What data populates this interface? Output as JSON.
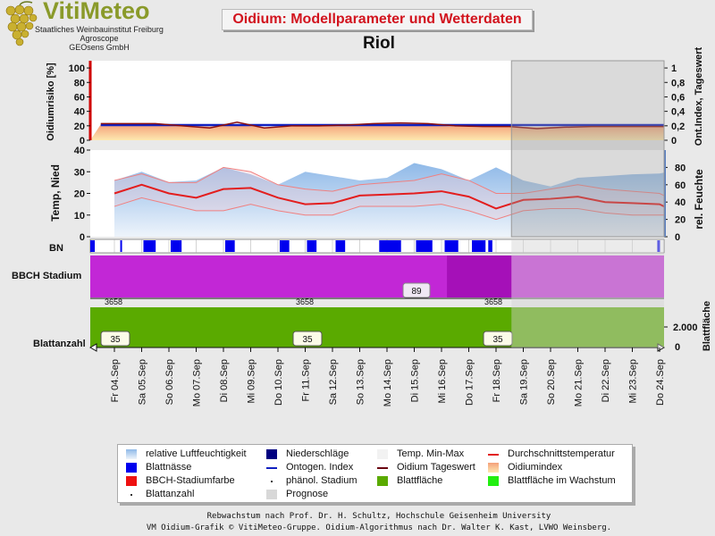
{
  "logo": {
    "title": "VitiMeteo",
    "lines": [
      "Staatliches Weinbauinstitut Freiburg",
      "Agroscope",
      "GEOsens GmbH"
    ],
    "icon": "grape-icon"
  },
  "header": {
    "title": "Oidium: Modellparameter und Wetterdaten",
    "station": "Riol"
  },
  "colors": {
    "temp_line": "#e31e1e",
    "humidity_fill": "#9ec4ea",
    "leaf_area": "#5aaa00",
    "bbch": "#c227d6",
    "wetness": "#0000ee",
    "prognosis": "#cfcfcf"
  },
  "chart_data": [
    {
      "name": "oidium",
      "type": "area",
      "ylabel": "Oidiumrisiko [%]",
      "y2label": "Ont.Index, Tageswert",
      "yticks": [
        0,
        20,
        40,
        60,
        80,
        100
      ],
      "y2ticks": [
        "0",
        "0,2",
        "0,4",
        "0,6",
        "0,8",
        "1"
      ],
      "ylim": [
        0,
        110
      ],
      "series": [
        {
          "name": "Oidiumindex",
          "values": [
            22,
            22,
            21,
            20,
            19,
            21,
            18,
            19,
            20,
            21,
            21,
            20,
            21,
            19,
            18,
            19,
            18,
            19,
            20,
            20,
            19,
            19
          ]
        },
        {
          "name": "Oidium Tageswert",
          "values": [
            23,
            23,
            23,
            20,
            17,
            25,
            17,
            20,
            20,
            21,
            23,
            24,
            23,
            20,
            19,
            19,
            16,
            18,
            19,
            19,
            19,
            19
          ]
        },
        {
          "name": "Ontogen. Index",
          "values": [
            21,
            21,
            21,
            21,
            21,
            21,
            21,
            21,
            21,
            21,
            21,
            21,
            21,
            21,
            21,
            21,
            21,
            21,
            21,
            21,
            21,
            21
          ]
        }
      ]
    },
    {
      "name": "weather",
      "type": "line",
      "ylabel": "Temp, Nied",
      "y2label": "rel. Feuchte",
      "yticks": [
        0,
        10,
        20,
        30,
        40
      ],
      "y2ticks": [
        0,
        20,
        40,
        60,
        80
      ],
      "ylim": [
        0,
        40
      ],
      "y2lim": [
        0,
        100
      ],
      "series": [
        {
          "name": "Durchschnittstemperatur",
          "values": [
            20,
            24,
            20,
            18,
            22,
            22.5,
            18,
            15,
            15.5,
            19,
            19.5,
            20,
            21,
            18.5,
            13,
            17,
            17.5,
            18.5,
            16,
            15.5,
            15,
            14
          ]
        },
        {
          "name": "Temp. Max",
          "values": [
            26,
            29,
            25,
            25,
            32,
            30,
            24,
            22,
            21,
            24,
            25,
            26,
            29,
            26,
            20,
            20,
            22,
            24,
            22,
            21,
            20,
            19
          ]
        },
        {
          "name": "Temp. Min",
          "values": [
            14,
            18,
            15,
            12,
            12,
            15,
            12,
            10,
            10,
            14,
            14,
            14,
            15,
            12,
            8,
            12,
            13,
            13,
            11,
            10,
            10,
            10
          ]
        },
        {
          "name": "relative Luftfeuchtigkeit",
          "values": [
            65,
            75,
            63,
            65,
            80,
            72,
            60,
            75,
            70,
            65,
            68,
            85,
            78,
            65,
            80,
            65,
            58,
            68,
            70,
            72,
            73,
            74
          ]
        }
      ]
    },
    {
      "name": "leaf_wetness",
      "type": "bar",
      "label": "BN",
      "intervals": [
        [
          0,
          0.1
        ],
        [
          0.1,
          0.12
        ],
        [
          1.1,
          1.15
        ],
        [
          1.95,
          2.4
        ],
        [
          2.95,
          3.35
        ],
        [
          4.95,
          5.3
        ],
        [
          6.95,
          7.3
        ],
        [
          7.95,
          8.3
        ],
        [
          9.0,
          9.35
        ],
        [
          10.6,
          11.4
        ],
        [
          11.95,
          12.55
        ],
        [
          13.0,
          13.5
        ],
        [
          14.0,
          14.5
        ],
        [
          14.6,
          14.75
        ],
        [
          20.8,
          20.9
        ]
      ]
    },
    {
      "name": "bbch",
      "type": "area",
      "label": "BBCH Stadium",
      "value": "89",
      "stage_labels": [
        "3658",
        "3658",
        "3658"
      ]
    },
    {
      "name": "leaves",
      "type": "area",
      "label": "Blattanzahl",
      "y2label": "Blattfläche",
      "y2tick": "2.000",
      "y2tick0": "0",
      "counts": [
        "35",
        "35",
        "35"
      ]
    }
  ],
  "x_labels": [
    "Fr 04.Sep",
    "Sa 05.Sep",
    "So 06.Sep",
    "Mo 07.Sep",
    "Di 08.Sep",
    "Mi 09.Sep",
    "Do 10.Sep",
    "Fr 11.Sep",
    "Sa 12.Sep",
    "So 13.Sep",
    "Mo 14.Sep",
    "Di 15.Sep",
    "Mi 16.Sep",
    "Do 17.Sep",
    "Fr 18.Sep",
    "Sa 19.Sep",
    "So 20.Sep",
    "Mo 21.Sep",
    "Di 22.Sep",
    "Mi 23.Sep",
    "Do 24.Sep"
  ],
  "prognosis_start_index": 14.5,
  "legend": {
    "items": [
      {
        "label": "relative Luftfeuchtigkeit",
        "swatch": "humidity-gradient"
      },
      {
        "label": "Niederschläge",
        "swatch": "navy-box"
      },
      {
        "label": "Temp. Min-Max",
        "swatch": "light-box"
      },
      {
        "label": "Durchschnittstemperatur",
        "swatch": "red-line"
      },
      {
        "label": "Blattnässe",
        "swatch": "blue-box"
      },
      {
        "label": "Ontogen. Index",
        "swatch": "blue-line"
      },
      {
        "label": "Oidium Tageswert",
        "swatch": "darkred-line"
      },
      {
        "label": "Oidiumindex",
        "swatch": "orange-gradient"
      },
      {
        "label": "BBCH-Stadiumfarbe",
        "swatch": "red-box"
      },
      {
        "label": "phänol. Stadium",
        "swatch": "dot"
      },
      {
        "label": "Blattfläche",
        "swatch": "green-box"
      },
      {
        "label": "Blattfläche im Wachstum",
        "swatch": "lime-box"
      },
      {
        "label": "Blattanzahl",
        "swatch": "dot"
      },
      {
        "label": "Prognose",
        "swatch": "gray-box"
      }
    ]
  },
  "footer": {
    "line1": "Rebwachstum nach Prof. Dr. H. Schultz, Hochschule Geisenheim University",
    "line2": "VM Oidium-Grafik © VitiMeteo-Gruppe. Oidium-Algorithmus nach Dr. Walter K. Kast, LVWO Weinsberg."
  }
}
